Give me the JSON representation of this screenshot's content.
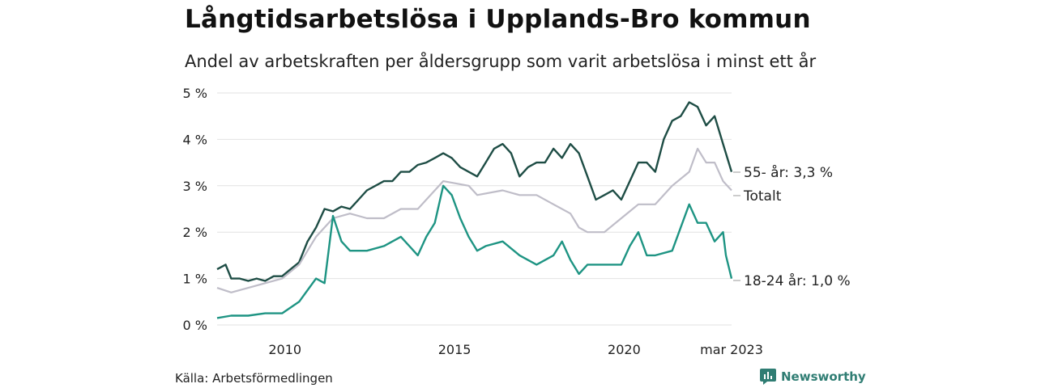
{
  "header": {
    "title": "Långtidsarbetslösa i Upplands-Bro kommun",
    "subtitle": "Andel av arbetskraften per åldersgrupp som varit arbetslösa i minst ett år"
  },
  "footer": {
    "source": "Källa: Arbetsförmedlingen",
    "brand": "Newsworthy"
  },
  "chart_data": {
    "type": "line",
    "title": "Långtidsarbetslösa i Upplands-Bro kommun",
    "subtitle": "Andel av arbetskraften per åldersgrupp som varit arbetslösa i minst ett år",
    "xlabel": "",
    "ylabel": "",
    "x_ticks": [
      "2010",
      "2015",
      "2020",
      "mar 2023"
    ],
    "y_ticks": [
      "0 %",
      "1 %",
      "2 %",
      "3 %",
      "4 %",
      "5 %"
    ],
    "ylim": [
      0,
      5
    ],
    "xlim": [
      "2008-01",
      "2023-03"
    ],
    "grid": "horizontal",
    "legend": "line-end labels, right",
    "series": [
      {
        "key": "old",
        "name": "55- år",
        "end_label": "55- år: 3,3 %",
        "color": "#1e4d45",
        "points": [
          [
            "2008-01",
            1.2
          ],
          [
            "2008-04",
            1.3
          ],
          [
            "2008-06",
            1.0
          ],
          [
            "2008-09",
            1.0
          ],
          [
            "2008-12",
            0.95
          ],
          [
            "2009-03",
            1.0
          ],
          [
            "2009-06",
            0.95
          ],
          [
            "2009-09",
            1.05
          ],
          [
            "2009-12",
            1.05
          ],
          [
            "2010-03",
            1.2
          ],
          [
            "2010-06",
            1.35
          ],
          [
            "2010-09",
            1.8
          ],
          [
            "2010-12",
            2.1
          ],
          [
            "2011-03",
            2.5
          ],
          [
            "2011-06",
            2.45
          ],
          [
            "2011-09",
            2.55
          ],
          [
            "2011-12",
            2.5
          ],
          [
            "2012-03",
            2.7
          ],
          [
            "2012-06",
            2.9
          ],
          [
            "2012-09",
            3.0
          ],
          [
            "2012-12",
            3.1
          ],
          [
            "2013-03",
            3.1
          ],
          [
            "2013-06",
            3.3
          ],
          [
            "2013-09",
            3.3
          ],
          [
            "2013-12",
            3.45
          ],
          [
            "2014-03",
            3.5
          ],
          [
            "2014-06",
            3.6
          ],
          [
            "2014-09",
            3.7
          ],
          [
            "2014-12",
            3.6
          ],
          [
            "2015-03",
            3.4
          ],
          [
            "2015-06",
            3.3
          ],
          [
            "2015-09",
            3.2
          ],
          [
            "2015-12",
            3.5
          ],
          [
            "2016-03",
            3.8
          ],
          [
            "2016-06",
            3.9
          ],
          [
            "2016-09",
            3.7
          ],
          [
            "2016-12",
            3.2
          ],
          [
            "2017-03",
            3.4
          ],
          [
            "2017-06",
            3.5
          ],
          [
            "2017-09",
            3.5
          ],
          [
            "2017-12",
            3.8
          ],
          [
            "2018-03",
            3.6
          ],
          [
            "2018-06",
            3.9
          ],
          [
            "2018-09",
            3.7
          ],
          [
            "2018-12",
            3.2
          ],
          [
            "2019-03",
            2.7
          ],
          [
            "2019-06",
            2.8
          ],
          [
            "2019-09",
            2.9
          ],
          [
            "2019-12",
            2.7
          ],
          [
            "2020-03",
            3.1
          ],
          [
            "2020-06",
            3.5
          ],
          [
            "2020-09",
            3.5
          ],
          [
            "2020-12",
            3.3
          ],
          [
            "2021-03",
            4.0
          ],
          [
            "2021-06",
            4.4
          ],
          [
            "2021-09",
            4.5
          ],
          [
            "2021-12",
            4.8
          ],
          [
            "2022-03",
            4.7
          ],
          [
            "2022-06",
            4.3
          ],
          [
            "2022-09",
            4.5
          ],
          [
            "2022-12",
            3.9
          ],
          [
            "2023-03",
            3.3
          ]
        ]
      },
      {
        "key": "total",
        "name": "Totalt",
        "end_label": "Totalt",
        "color": "#bfbdc8",
        "points": [
          [
            "2008-01",
            0.8
          ],
          [
            "2008-06",
            0.7
          ],
          [
            "2008-12",
            0.8
          ],
          [
            "2009-06",
            0.9
          ],
          [
            "2009-12",
            1.0
          ],
          [
            "2010-06",
            1.3
          ],
          [
            "2010-12",
            1.9
          ],
          [
            "2011-06",
            2.3
          ],
          [
            "2011-12",
            2.4
          ],
          [
            "2012-06",
            2.3
          ],
          [
            "2012-12",
            2.3
          ],
          [
            "2013-06",
            2.5
          ],
          [
            "2013-12",
            2.5
          ],
          [
            "2014-06",
            2.9
          ],
          [
            "2014-09",
            3.1
          ],
          [
            "2015-06",
            3.0
          ],
          [
            "2015-09",
            2.8
          ],
          [
            "2016-06",
            2.9
          ],
          [
            "2016-12",
            2.8
          ],
          [
            "2017-06",
            2.8
          ],
          [
            "2017-12",
            2.6
          ],
          [
            "2018-06",
            2.4
          ],
          [
            "2018-09",
            2.1
          ],
          [
            "2018-12",
            2.0
          ],
          [
            "2019-06",
            2.0
          ],
          [
            "2019-12",
            2.3
          ],
          [
            "2020-06",
            2.6
          ],
          [
            "2020-12",
            2.6
          ],
          [
            "2021-06",
            3.0
          ],
          [
            "2021-12",
            3.3
          ],
          [
            "2022-03",
            3.8
          ],
          [
            "2022-06",
            3.5
          ],
          [
            "2022-09",
            3.5
          ],
          [
            "2022-12",
            3.1
          ],
          [
            "2023-03",
            2.9
          ]
        ]
      },
      {
        "key": "young",
        "name": "18-24 år",
        "end_label": "18-24 år: 1,0 %",
        "color": "#1e9483",
        "points": [
          [
            "2008-01",
            0.15
          ],
          [
            "2008-06",
            0.2
          ],
          [
            "2008-12",
            0.2
          ],
          [
            "2009-06",
            0.25
          ],
          [
            "2009-12",
            0.25
          ],
          [
            "2010-06",
            0.5
          ],
          [
            "2010-12",
            1.0
          ],
          [
            "2011-03",
            0.9
          ],
          [
            "2011-06",
            2.35
          ],
          [
            "2011-09",
            1.8
          ],
          [
            "2011-12",
            1.6
          ],
          [
            "2012-06",
            1.6
          ],
          [
            "2012-12",
            1.7
          ],
          [
            "2013-06",
            1.9
          ],
          [
            "2013-12",
            1.5
          ],
          [
            "2014-03",
            1.9
          ],
          [
            "2014-06",
            2.2
          ],
          [
            "2014-09",
            3.0
          ],
          [
            "2014-12",
            2.8
          ],
          [
            "2015-03",
            2.3
          ],
          [
            "2015-06",
            1.9
          ],
          [
            "2015-09",
            1.6
          ],
          [
            "2015-12",
            1.7
          ],
          [
            "2016-06",
            1.8
          ],
          [
            "2016-12",
            1.5
          ],
          [
            "2017-06",
            1.3
          ],
          [
            "2017-12",
            1.5
          ],
          [
            "2018-03",
            1.8
          ],
          [
            "2018-06",
            1.4
          ],
          [
            "2018-09",
            1.1
          ],
          [
            "2018-12",
            1.3
          ],
          [
            "2019-06",
            1.3
          ],
          [
            "2019-12",
            1.3
          ],
          [
            "2020-03",
            1.7
          ],
          [
            "2020-06",
            2.0
          ],
          [
            "2020-09",
            1.5
          ],
          [
            "2020-12",
            1.5
          ],
          [
            "2021-06",
            1.6
          ],
          [
            "2021-12",
            2.6
          ],
          [
            "2022-03",
            2.2
          ],
          [
            "2022-06",
            2.2
          ],
          [
            "2022-09",
            1.8
          ],
          [
            "2022-12",
            2.0
          ],
          [
            "2023-01",
            1.5
          ],
          [
            "2023-03",
            1.0
          ]
        ]
      }
    ]
  }
}
